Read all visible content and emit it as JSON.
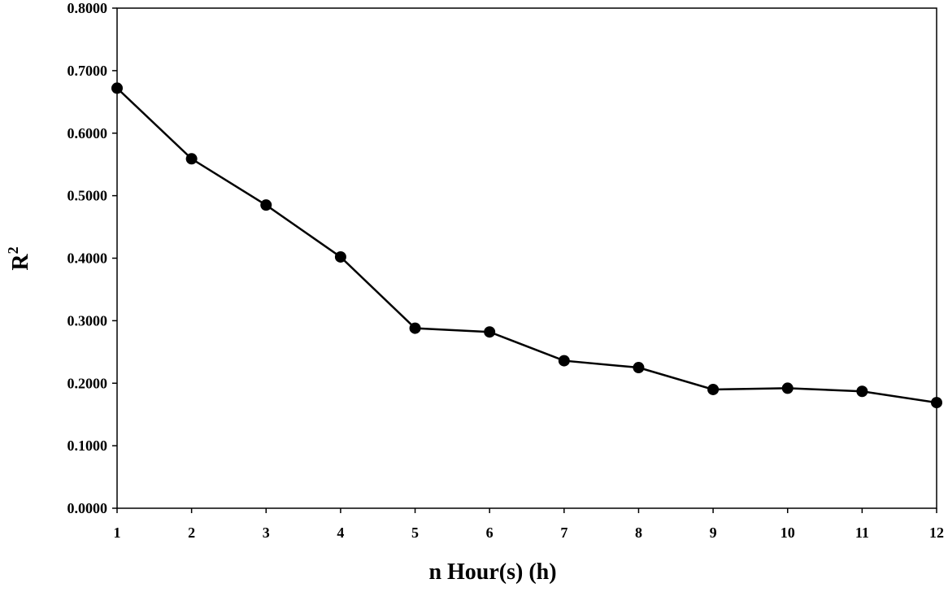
{
  "chart_data": {
    "type": "line",
    "title": "",
    "xlabel": "n Hour(s) (h)",
    "ylabel": "R",
    "ylabel_superscript": "2",
    "x": [
      1,
      2,
      3,
      4,
      5,
      6,
      7,
      8,
      9,
      10,
      11,
      12
    ],
    "series": [
      {
        "values": [
          0.672,
          0.559,
          0.485,
          0.402,
          0.288,
          0.282,
          0.236,
          0.225,
          0.19,
          0.192,
          0.187,
          0.169
        ]
      }
    ],
    "xlim": [
      1,
      12
    ],
    "ylim": [
      0,
      0.8
    ],
    "yticks": [
      "0.0000",
      "0.1000",
      "0.2000",
      "0.3000",
      "0.4000",
      "0.5000",
      "0.6000",
      "0.7000",
      "0.8000"
    ],
    "xticks": [
      "1",
      "2",
      "3",
      "4",
      "5",
      "6",
      "7",
      "8",
      "9",
      "10",
      "11",
      "12"
    ],
    "grid": false,
    "legend": "none",
    "line_color": "#000000",
    "marker_color": "#000000"
  }
}
